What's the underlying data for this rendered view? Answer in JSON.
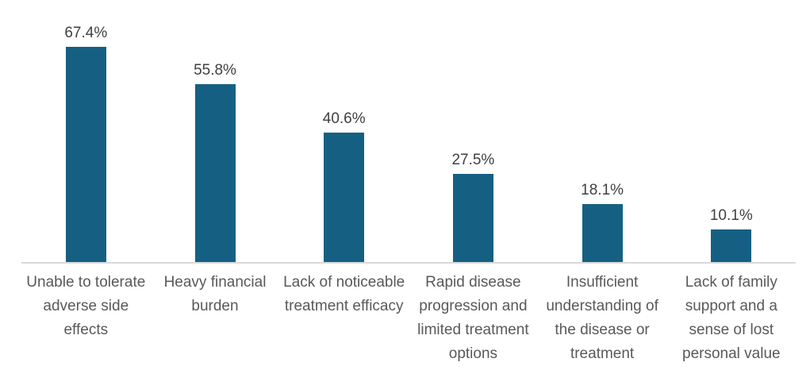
{
  "chart_data": {
    "type": "bar",
    "title": "",
    "xlabel": "",
    "ylabel": "",
    "categories": [
      "Unable to tolerate adverse side effects",
      "Heavy financial burden",
      "Lack of noticeable treatment efficacy",
      "Rapid disease progression and limited treatment options",
      "Insufficient understanding of the disease or treatment",
      "Lack of family support and a sense of lost personal value"
    ],
    "values": [
      67.4,
      55.8,
      40.6,
      27.5,
      18.1,
      10.1
    ],
    "data_labels": [
      "67.4%",
      "55.8%",
      "40.6%",
      "27.5%",
      "18.1%",
      "10.1%"
    ],
    "ylim": [
      0,
      80
    ],
    "grid": false,
    "legend": false,
    "colors": {
      "bar_fill": "#156082",
      "data_label": "#404040",
      "category_label": "#595959",
      "axis_line": "#d9d9d9",
      "background": "#ffffff"
    }
  }
}
